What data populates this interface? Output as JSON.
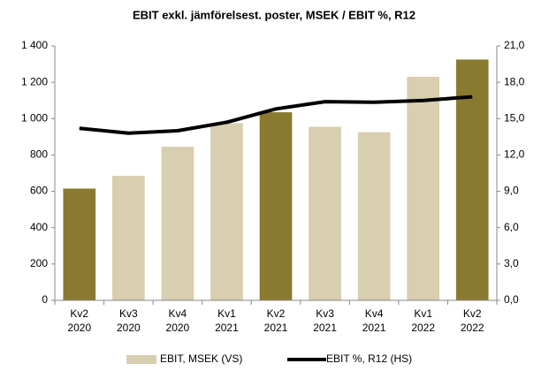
{
  "chart_data": {
    "type": "bar",
    "title": "EBIT exkl. jämförelsest. poster, MSEK / EBIT %, R12",
    "categories": [
      [
        "Kv2",
        "2020"
      ],
      [
        "Kv3",
        "2020"
      ],
      [
        "Kv4",
        "2020"
      ],
      [
        "Kv1",
        "2021"
      ],
      [
        "Kv2",
        "2021"
      ],
      [
        "Kv3",
        "2021"
      ],
      [
        "Kv4",
        "2021"
      ],
      [
        "Kv1",
        "2022"
      ],
      [
        "Kv2",
        "2022"
      ]
    ],
    "series": [
      {
        "name": "EBIT, MSEK (VS)",
        "type": "bar",
        "color": "#d8ceb0",
        "colors": [
          "#8a7a30",
          "#d8ceb0",
          "#d8ceb0",
          "#d8ceb0",
          "#8a7a30",
          "#d8ceb0",
          "#d8ceb0",
          "#d8ceb0",
          "#8a7a30"
        ],
        "values": [
          615,
          685,
          845,
          975,
          1035,
          955,
          925,
          1230,
          1325
        ]
      },
      {
        "name": "EBIT %, R12 (HS)",
        "type": "line",
        "axis": "y2",
        "color": "#000000",
        "values": [
          14.2,
          13.8,
          14.0,
          14.7,
          15.8,
          16.4,
          16.35,
          16.5,
          16.8
        ]
      }
    ],
    "ylim": [
      0,
      1400
    ],
    "yticks": [
      0,
      200,
      400,
      600,
      800,
      {
        "value": 1000,
        "label": "1 000"
      },
      {
        "value": 1200,
        "label": "1 200"
      },
      {
        "value": 1400,
        "label": "1 400"
      }
    ],
    "y2lim": [
      0,
      21
    ],
    "y2ticks": [
      {
        "value": 0,
        "label": "0,0"
      },
      {
        "value": 3,
        "label": "3,0"
      },
      {
        "value": 6,
        "label": "6,0"
      },
      {
        "value": 9,
        "label": "9,0"
      },
      {
        "value": 12,
        "label": "12,0"
      },
      {
        "value": 15,
        "label": "15,0"
      },
      {
        "value": 18,
        "label": "18,0"
      },
      {
        "value": 21,
        "label": "21,0"
      }
    ],
    "grid": false,
    "legend": "bottom"
  }
}
